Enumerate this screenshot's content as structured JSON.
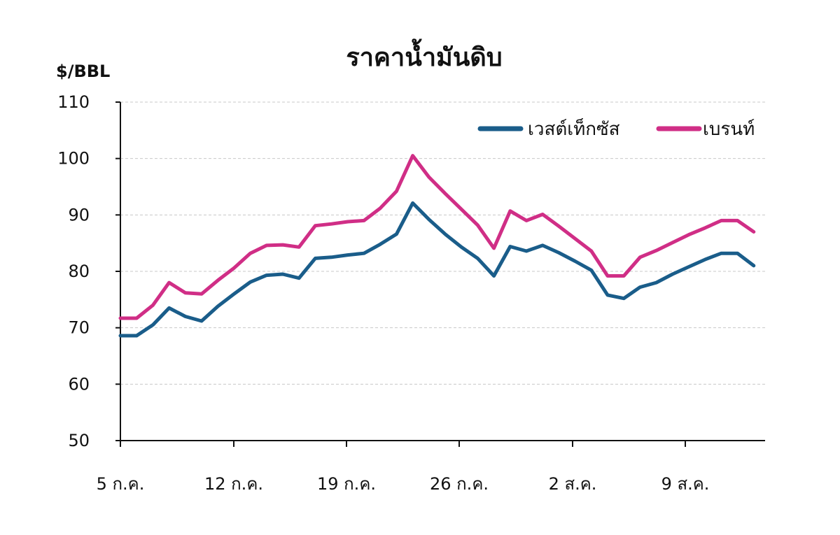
{
  "chart_data": {
    "type": "line",
    "title": "ราคาน้ำมันดิบ",
    "ylabel": "$/BBL",
    "xlabel": "",
    "ylim": [
      50,
      110
    ],
    "yticks": [
      "110",
      "100",
      "90",
      "80",
      "70",
      "60",
      "50"
    ],
    "xtick_labels": [
      "5 ก.ค.",
      "12 ก.ค.",
      "19 ก.ค.",
      "26 ก.ค.",
      "2 ส.ค.",
      "9 ส.ค."
    ],
    "grid": true,
    "legend_position": "top-right",
    "series": [
      {
        "name": "เวสต์เท็กซัส",
        "color": "#1a5d8a",
        "values": [
          68.6,
          68.6,
          70.5,
          73.5,
          72.0,
          71.2,
          73.8,
          76.0,
          78.1,
          79.3,
          79.5,
          78.8,
          82.3,
          82.5,
          82.9,
          83.2,
          84.8,
          86.6,
          92.1,
          89.2,
          86.6,
          84.3,
          82.3,
          79.2,
          84.4,
          83.6,
          84.6,
          83.3,
          81.8,
          80.2,
          75.8,
          75.2,
          77.2,
          78.0,
          79.5,
          80.8,
          82.1,
          83.2,
          83.2,
          81.0
        ]
      },
      {
        "name": "เบรนท์",
        "color": "#d02e86",
        "values": [
          71.7,
          71.7,
          74.0,
          78.0,
          76.2,
          76.0,
          78.4,
          80.6,
          83.2,
          84.6,
          84.7,
          84.3,
          88.1,
          88.4,
          88.8,
          89.0,
          91.2,
          94.2,
          100.5,
          96.7,
          93.8,
          91.0,
          88.2,
          84.1,
          90.7,
          89.0,
          90.1,
          88.0,
          85.8,
          83.6,
          79.2,
          79.2,
          82.5,
          83.7,
          85.1,
          86.5,
          87.7,
          89.0,
          89.0,
          87.0
        ]
      }
    ]
  }
}
